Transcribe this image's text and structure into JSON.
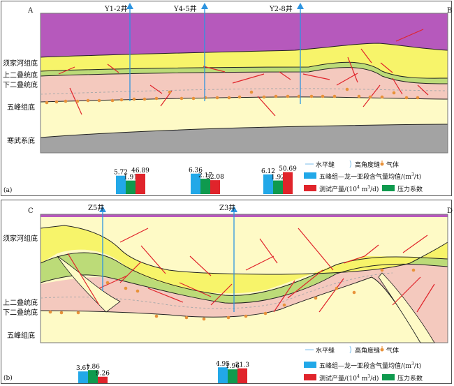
{
  "panel_a": {
    "label": "(a)",
    "corners": {
      "left": "A",
      "right": "B"
    },
    "wells": [
      "Y1-2井",
      "Y4-5井",
      "Y2-8井"
    ],
    "formations": [
      "须家河组底",
      "上二叠统底",
      "下二叠统底",
      "五峰组底",
      "寒武系底"
    ],
    "legend": {
      "horizontal": "水平缝",
      "high_angle": "高角度缝",
      "gas": "气体",
      "gas_content": "五峰组—龙一",
      "gas_content_sub": "亚段含气量均值/(m",
      "gas_content_unit": "/t)",
      "test_output": "测试产量/(10",
      "test_output_unit": " m",
      "test_output_unit2": "/d)",
      "pressure": "压力系数"
    },
    "bars": [
      {
        "well": "Y1-2井",
        "gas": 5.72,
        "pressure": 1.91,
        "output": 46.89,
        "labels": [
          "5.72",
          "1.91",
          "46.89"
        ]
      },
      {
        "well": "Y4-5井",
        "gas": 6.36,
        "pressure": 2.17,
        "output": 32.08,
        "labels": [
          "6.36",
          "2.17",
          "32.08"
        ]
      },
      {
        "well": "Y2-8井",
        "gas": 6.12,
        "pressure": 1.92,
        "output": 50.69,
        "labels": [
          "6.12",
          "1.92",
          "50.69"
        ]
      }
    ]
  },
  "panel_b": {
    "label": "(b)",
    "corners": {
      "left": "C",
      "right": "D"
    },
    "wells": [
      "Z5井",
      "Z3井"
    ],
    "formations": [
      "须家河组底",
      "上二叠统底",
      "下二叠统底",
      "五峰组底"
    ],
    "legend": {
      "horizontal": "水平缝",
      "high_angle": "高角度缝",
      "gas": "气体",
      "gas_content": "五峰组—龙一",
      "gas_content_sub": "亚段含气量均值/(m",
      "gas_content_unit": "/t)",
      "test_output": "测试产量/(10",
      "test_output_unit": " m",
      "test_output_unit2": "/d)",
      "pressure": "压力系数"
    },
    "bars": [
      {
        "well": "Z5井",
        "gas": 3.67,
        "pressure": 1.86,
        "output": 9.26,
        "labels": [
          "3.67",
          "1.86",
          "9.26"
        ]
      },
      {
        "well": "Z3井",
        "gas": 4.95,
        "pressure": 1.96,
        "output": 21.3,
        "labels": [
          "4.95",
          "1.96",
          "21.3"
        ]
      }
    ]
  },
  "superscripts": {
    "three": "3",
    "four": "4"
  },
  "colors": {
    "purple": "#B659BC",
    "yellow": "#F7F46A",
    "green": "#BCDB78",
    "pink": "#F4C9BE",
    "cream": "#FEFAC6",
    "gray": "#A3A3A3",
    "well": "#2D94E0",
    "fracture": "#E0242B",
    "gas_bar": "#22A8E8",
    "pressure_bar": "#0F9A4E",
    "output_bar": "#E0242B",
    "gas_dot": "#E8923A"
  }
}
